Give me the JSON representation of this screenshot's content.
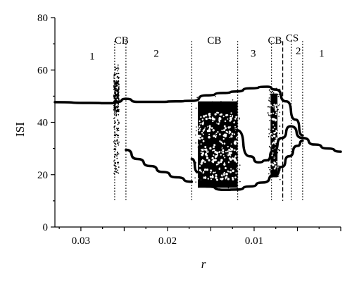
{
  "chart_data": {
    "type": "scatter",
    "title": "",
    "xlabel": "r",
    "ylabel": "ISI",
    "xlim": [
      0.033,
      0.0
    ],
    "ylim": [
      0,
      80
    ],
    "x_reversed": true,
    "grid": false,
    "x_ticks": [
      {
        "value": 0.03,
        "label": "0.03"
      },
      {
        "value": 0.02,
        "label": "0.02"
      },
      {
        "value": 0.01,
        "label": "0.01"
      }
    ],
    "y_ticks": [
      {
        "value": 0,
        "label": "0"
      },
      {
        "value": 20,
        "label": "20"
      },
      {
        "value": 40,
        "label": "40"
      },
      {
        "value": 60,
        "label": "60"
      },
      {
        "value": 80,
        "label": "80"
      }
    ],
    "boundaries": [
      {
        "r": 0.0261,
        "style": "dotted"
      },
      {
        "r": 0.0248,
        "style": "dotted"
      },
      {
        "r": 0.0172,
        "style": "dotted"
      },
      {
        "r": 0.0119,
        "style": "dotted"
      },
      {
        "r": 0.008,
        "style": "dotted"
      },
      {
        "r": 0.0067,
        "style": "dashed"
      },
      {
        "r": 0.0057,
        "style": "dotted"
      },
      {
        "r": 0.0044,
        "style": "dotted"
      }
    ],
    "region_labels": [
      {
        "text": "1",
        "r": 0.0287,
        "y": 64
      },
      {
        "text": "CB",
        "r": 0.0253,
        "y": 70
      },
      {
        "text": "2",
        "r": 0.0213,
        "y": 65
      },
      {
        "text": "CB",
        "r": 0.0146,
        "y": 70
      },
      {
        "text": "3",
        "r": 0.0101,
        "y": 65
      },
      {
        "text": "CB",
        "r": 0.0076,
        "y": 70
      },
      {
        "text": "CS",
        "r": 0.0056,
        "y": 71
      },
      {
        "text": "2",
        "r": 0.0049,
        "y": 66
      },
      {
        "text": "1",
        "r": 0.0022,
        "y": 65
      }
    ],
    "branches": [
      {
        "name": "",
        "points": [
          [
            0.033,
            47.7
          ],
          [
            0.029,
            47.4
          ],
          [
            0.0265,
            47.3
          ],
          [
            0.0258,
            47.8
          ],
          [
            0.0248,
            49
          ]
        ]
      },
      {
        "name": "",
        "points": [
          [
            0.0248,
            49
          ],
          [
            0.0235,
            47.8
          ],
          [
            0.021,
            47.8
          ],
          [
            0.019,
            48
          ],
          [
            0.0172,
            48.2
          ]
        ]
      },
      {
        "name": "",
        "points": [
          [
            0.0248,
            29.5
          ],
          [
            0.0235,
            26
          ],
          [
            0.022,
            23.3
          ],
          [
            0.0205,
            21
          ],
          [
            0.019,
            19
          ],
          [
            0.0172,
            17.3
          ]
        ]
      },
      {
        "name": "",
        "points": [
          [
            0.0172,
            48.2
          ],
          [
            0.0155,
            50.3
          ],
          [
            0.0135,
            51.2
          ],
          [
            0.012,
            51.8
          ]
        ]
      },
      {
        "name": "",
        "points": [
          [
            0.0172,
            26
          ],
          [
            0.0165,
            21
          ],
          [
            0.0155,
            15.5
          ],
          [
            0.0135,
            14.2
          ],
          [
            0.012,
            14.3
          ]
        ]
      },
      {
        "name": "",
        "points": [
          [
            0.012,
            51.8
          ],
          [
            0.0105,
            53
          ],
          [
            0.0085,
            53.6
          ],
          [
            0.0075,
            52.5
          ],
          [
            0.0063,
            48
          ],
          [
            0.0052,
            41
          ],
          [
            0.0044,
            35
          ]
        ]
      },
      {
        "name": "",
        "points": [
          [
            0.012,
            37
          ],
          [
            0.0105,
            27
          ],
          [
            0.0095,
            24.7
          ],
          [
            0.0085,
            25.5
          ],
          [
            0.0078,
            29
          ],
          [
            0.0068,
            34
          ],
          [
            0.0058,
            38.5
          ],
          [
            0.0044,
            34
          ]
        ]
      },
      {
        "name": "",
        "points": [
          [
            0.012,
            14.3
          ],
          [
            0.0105,
            15.5
          ],
          [
            0.009,
            17
          ],
          [
            0.0075,
            20
          ],
          [
            0.0068,
            23
          ],
          [
            0.006,
            27
          ],
          [
            0.005,
            31
          ],
          [
            0.0044,
            33
          ]
        ]
      },
      {
        "name": "",
        "points": [
          [
            0.0044,
            34
          ],
          [
            0.003,
            31.5
          ],
          [
            0.0015,
            30
          ],
          [
            0.0,
            28.8
          ]
        ]
      }
    ],
    "chaotic_bands": [
      {
        "r_from": 0.0262,
        "r_to": 0.0256,
        "y_min": 20,
        "y_max": 62,
        "density": "sparse"
      },
      {
        "r_from": 0.0165,
        "r_to": 0.0119,
        "y_min": 14,
        "y_max": 50,
        "density": "dense"
      },
      {
        "r_from": 0.0081,
        "r_to": 0.0073,
        "y_min": 18,
        "y_max": 53,
        "density": "dense"
      }
    ]
  }
}
